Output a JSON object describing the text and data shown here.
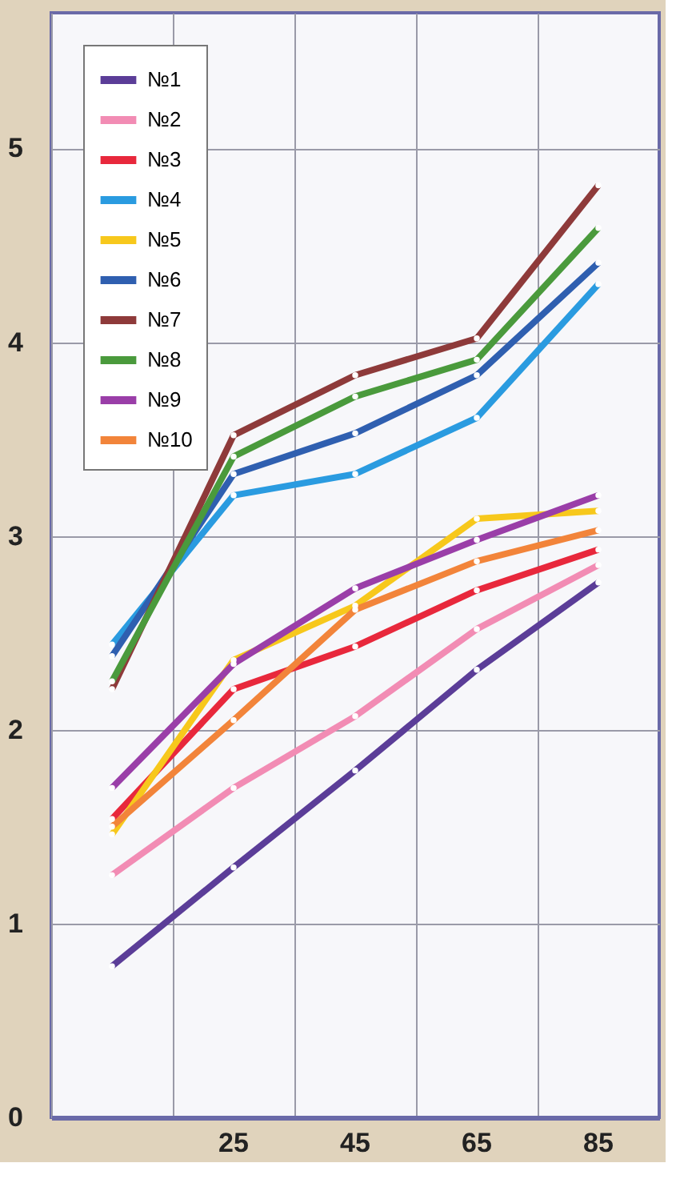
{
  "chart_data": {
    "type": "line",
    "categories": [
      null,
      "25",
      "45",
      "65",
      "85"
    ],
    "ylim": [
      0,
      5.7
    ],
    "yticks": [
      0,
      1,
      2,
      3,
      4,
      5
    ],
    "grid": true,
    "legend": "top left",
    "marker": "circle",
    "line_style": "solid",
    "series": [
      {
        "name": "№1",
        "color": "#5b3d98",
        "values": [
          0.78,
          1.29,
          1.79,
          2.31,
          2.76
        ]
      },
      {
        "name": "№2",
        "color": "#f28cb4",
        "values": [
          1.25,
          1.7,
          2.07,
          2.52,
          2.85
        ]
      },
      {
        "name": "№3",
        "color": "#e8283c",
        "values": [
          1.54,
          2.21,
          2.43,
          2.72,
          2.93
        ]
      },
      {
        "name": "№4",
        "color": "#2a9be0",
        "values": [
          2.44,
          3.21,
          3.32,
          3.61,
          4.3
        ]
      },
      {
        "name": "№5",
        "color": "#f7c81c",
        "values": [
          1.46,
          2.36,
          2.64,
          3.09,
          3.13
        ]
      },
      {
        "name": "№6",
        "color": "#2f5fb0",
        "values": [
          2.38,
          3.32,
          3.53,
          3.83,
          4.41
        ]
      },
      {
        "name": "№7",
        "color": "#8e3a3a",
        "values": [
          2.21,
          3.52,
          3.83,
          4.02,
          4.81
        ]
      },
      {
        "name": "№8",
        "color": "#4a9a3c",
        "values": [
          2.25,
          3.41,
          3.72,
          3.91,
          4.59
        ]
      },
      {
        "name": "№9",
        "color": "#9a3ea8",
        "values": [
          1.7,
          2.34,
          2.73,
          2.98,
          3.21
        ]
      },
      {
        "name": "№10",
        "color": "#f2843a",
        "values": [
          1.5,
          2.05,
          2.62,
          2.87,
          3.03
        ]
      }
    ]
  }
}
